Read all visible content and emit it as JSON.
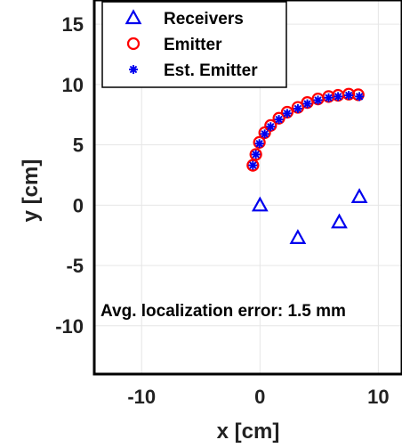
{
  "chart_data": {
    "type": "scatter",
    "xlabel": "x [cm]",
    "ylabel": "y [cm]",
    "xlim": [
      -14,
      12
    ],
    "ylim": [
      -14,
      17
    ],
    "xticks": [
      -10,
      0,
      10
    ],
    "yticks": [
      -10,
      -5,
      0,
      5,
      10,
      15
    ],
    "xtick_labels": [
      "-10",
      "0",
      "10"
    ],
    "ytick_labels": [
      "-10",
      "-5",
      "0",
      "5",
      "10",
      "15"
    ],
    "grid": true,
    "legend_position": "top-left",
    "annotation": "Avg. localization error: 1.5 mm",
    "series": [
      {
        "name": "Receivers",
        "marker": "triangle",
        "color": "#0000ee",
        "x": [
          0.0,
          3.2,
          6.7,
          8.4
        ],
        "y": [
          0.0,
          -2.7,
          -1.4,
          0.7
        ]
      },
      {
        "name": "Emitter",
        "marker": "circle",
        "color": "#ff0000",
        "x": [
          -0.6,
          -0.35,
          -0.05,
          0.4,
          0.9,
          1.6,
          2.3,
          3.2,
          4.0,
          4.9,
          5.8,
          6.6,
          7.5,
          8.3
        ],
        "y": [
          3.3,
          4.2,
          5.2,
          6.0,
          6.6,
          7.2,
          7.7,
          8.1,
          8.5,
          8.8,
          9.0,
          9.1,
          9.2,
          9.15
        ]
      },
      {
        "name": "Est. Emitter",
        "marker": "asterisk",
        "color": "#0000ee",
        "x": [
          -0.6,
          -0.35,
          -0.05,
          0.4,
          0.9,
          1.6,
          2.3,
          3.2,
          4.0,
          4.9,
          5.8,
          6.6,
          7.5,
          8.4
        ],
        "y": [
          3.3,
          4.2,
          5.1,
          5.9,
          6.5,
          7.1,
          7.6,
          8.0,
          8.4,
          8.7,
          8.9,
          9.0,
          9.1,
          9.0
        ]
      }
    ]
  }
}
